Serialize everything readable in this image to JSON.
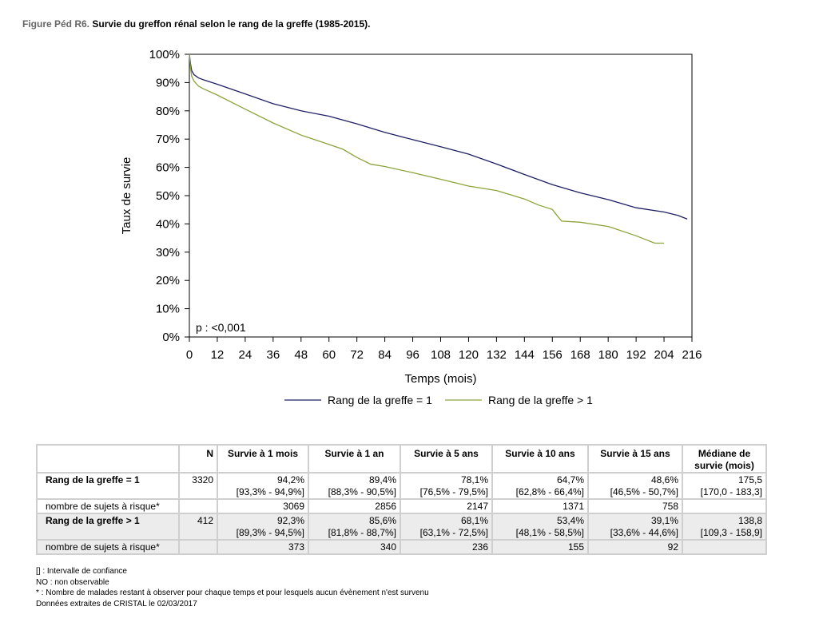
{
  "figure": {
    "prefix": "Figure Péd R6.",
    "title": "Survie du greffon rénal selon le rang de la greffe (1985-2015)."
  },
  "chart_data": {
    "type": "line",
    "xlabel": "Temps (mois)",
    "ylabel": "Taux de survie",
    "xlim": [
      0,
      216
    ],
    "ylim": [
      0,
      100
    ],
    "xticks": [
      0,
      12,
      24,
      36,
      48,
      60,
      72,
      84,
      96,
      108,
      120,
      132,
      144,
      156,
      168,
      180,
      192,
      204,
      216
    ],
    "yticks": [
      "0%",
      "10%",
      "20%",
      "30%",
      "40%",
      "50%",
      "60%",
      "70%",
      "80%",
      "90%",
      "100%"
    ],
    "grid": false,
    "legend_position": "bottom",
    "annotation": "p : <0,001",
    "series": [
      {
        "name": "Rang de la greffe = 1",
        "color": "#1f1f66",
        "x": [
          0,
          0.5,
          1,
          2,
          4,
          6,
          12,
          24,
          36,
          48,
          60,
          72,
          84,
          96,
          108,
          120,
          132,
          144,
          156,
          168,
          180,
          192,
          204,
          210,
          214
        ],
        "y": [
          100,
          96.5,
          94.2,
          92.8,
          91.6,
          91,
          89.4,
          86,
          82.5,
          80,
          78.1,
          75.4,
          72.4,
          69.8,
          67.3,
          64.7,
          61.2,
          57.5,
          53.9,
          51,
          48.6,
          45.7,
          44.2,
          43,
          41.7
        ]
      },
      {
        "name": "Rang de la greffe > 1",
        "color": "#8aa43a",
        "x": [
          0,
          0.5,
          1,
          2,
          4,
          6,
          12,
          24,
          36,
          48,
          60,
          66,
          72,
          78,
          84,
          96,
          108,
          120,
          132,
          144,
          150,
          156,
          158,
          160,
          168,
          180,
          192,
          200,
          204
        ],
        "y": [
          100,
          95,
          92.3,
          90.5,
          88.7,
          87.8,
          85.6,
          80.6,
          75.7,
          71.4,
          68.1,
          66.4,
          63.5,
          61.1,
          60.3,
          58.1,
          55.8,
          53.4,
          51.8,
          48.8,
          46.7,
          45.1,
          43,
          41,
          40.6,
          39.1,
          35.8,
          33.2,
          33.2
        ]
      }
    ]
  },
  "table": {
    "headers": [
      "",
      "N",
      "Survie à 1 mois",
      "Survie à 1 an",
      "Survie à 5 ans",
      "Survie à 10 ans",
      "Survie à 15 ans",
      "Médiane de survie (mois)"
    ],
    "group1": {
      "label": "Rang de la greffe = 1",
      "n": "3320",
      "values": [
        "94,2%",
        "89,4%",
        "78,1%",
        "64,7%",
        "48,6%",
        "175,5"
      ],
      "ci": [
        "[93,3% - 94,9%]",
        "[88,3% - 90,5%]",
        "[76,5% - 79,5%]",
        "[62,8% - 66,4%]",
        "[46,5% - 50,7%]",
        "[170,0 - 183,3]"
      ],
      "risk_label": "nombre de sujets à risque*",
      "risk": [
        "3069",
        "2856",
        "2147",
        "1371",
        "758",
        ""
      ]
    },
    "group2": {
      "label": "Rang de la greffe > 1",
      "n": "412",
      "values": [
        "92,3%",
        "85,6%",
        "68,1%",
        "53,4%",
        "39,1%",
        "138,8"
      ],
      "ci": [
        "[89,3% - 94,5%]",
        "[81,8% - 88,7%]",
        "[63,1% - 72,5%]",
        "[48,1% - 58,5%]",
        "[33,6% - 44,6%]",
        "[109,3 - 158,9]"
      ],
      "risk_label": "nombre de sujets à risque*",
      "risk": [
        "373",
        "340",
        "236",
        "155",
        "92",
        ""
      ]
    }
  },
  "notes": [
    "[] : Intervalle de confiance",
    "NO : non observable",
    "* : Nombre de malades restant à observer pour chaque temps et pour lesquels aucun évènement n'est survenu",
    "Données extraites de CRISTAL le 02/03/2017"
  ]
}
